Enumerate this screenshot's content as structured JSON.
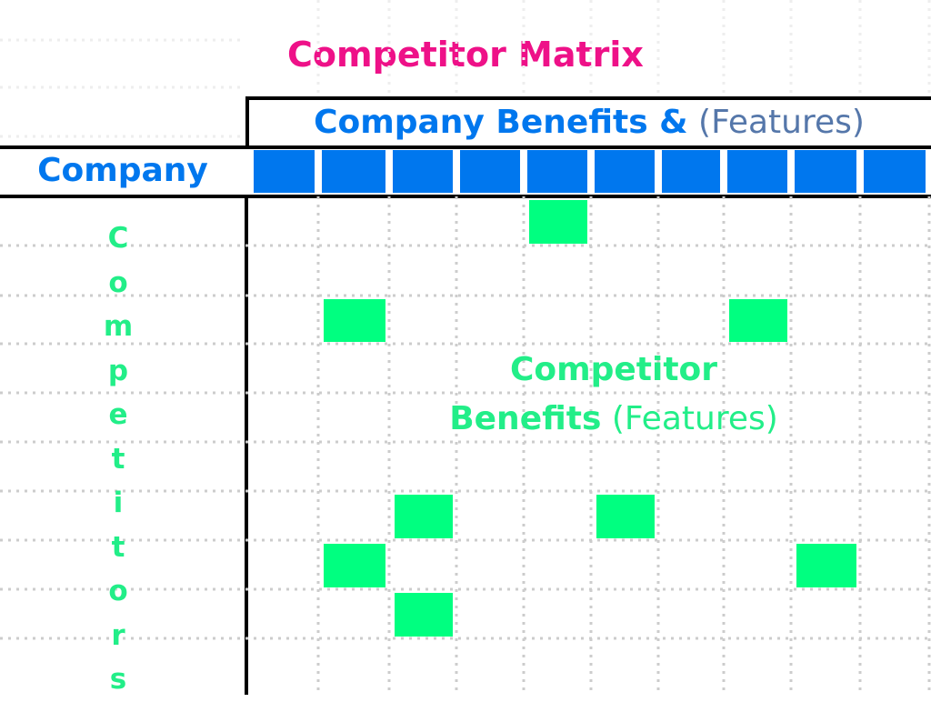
{
  "title": "Competitor Matrix",
  "header": {
    "benefits_bold": "Company Benefits &",
    "benefits_thin": "(Features)"
  },
  "company_label": "Company",
  "competitors_label": "Competitors",
  "matrix_label": {
    "line1": "Competitor",
    "line2_bold": "Benefits",
    "line2_thin": "(Features)"
  },
  "colors": {
    "title": "#ee1188",
    "company_blue": "#0077ee",
    "features_gray": "#5577aa",
    "competitor_green": "#00ff80",
    "competitor_text": "#22ee88",
    "grid_dots": "#cccccc"
  },
  "company_feature_count": 10,
  "competitor_marks": [
    {
      "feature": 5,
      "row": 1
    },
    {
      "feature": 2,
      "row": 3
    },
    {
      "feature": 8,
      "row": 3
    },
    {
      "feature": 3,
      "row": 7
    },
    {
      "feature": 6,
      "row": 7
    },
    {
      "feature": 2,
      "row": 8
    },
    {
      "feature": 9,
      "row": 8
    },
    {
      "feature": 3,
      "row": 9
    }
  ]
}
